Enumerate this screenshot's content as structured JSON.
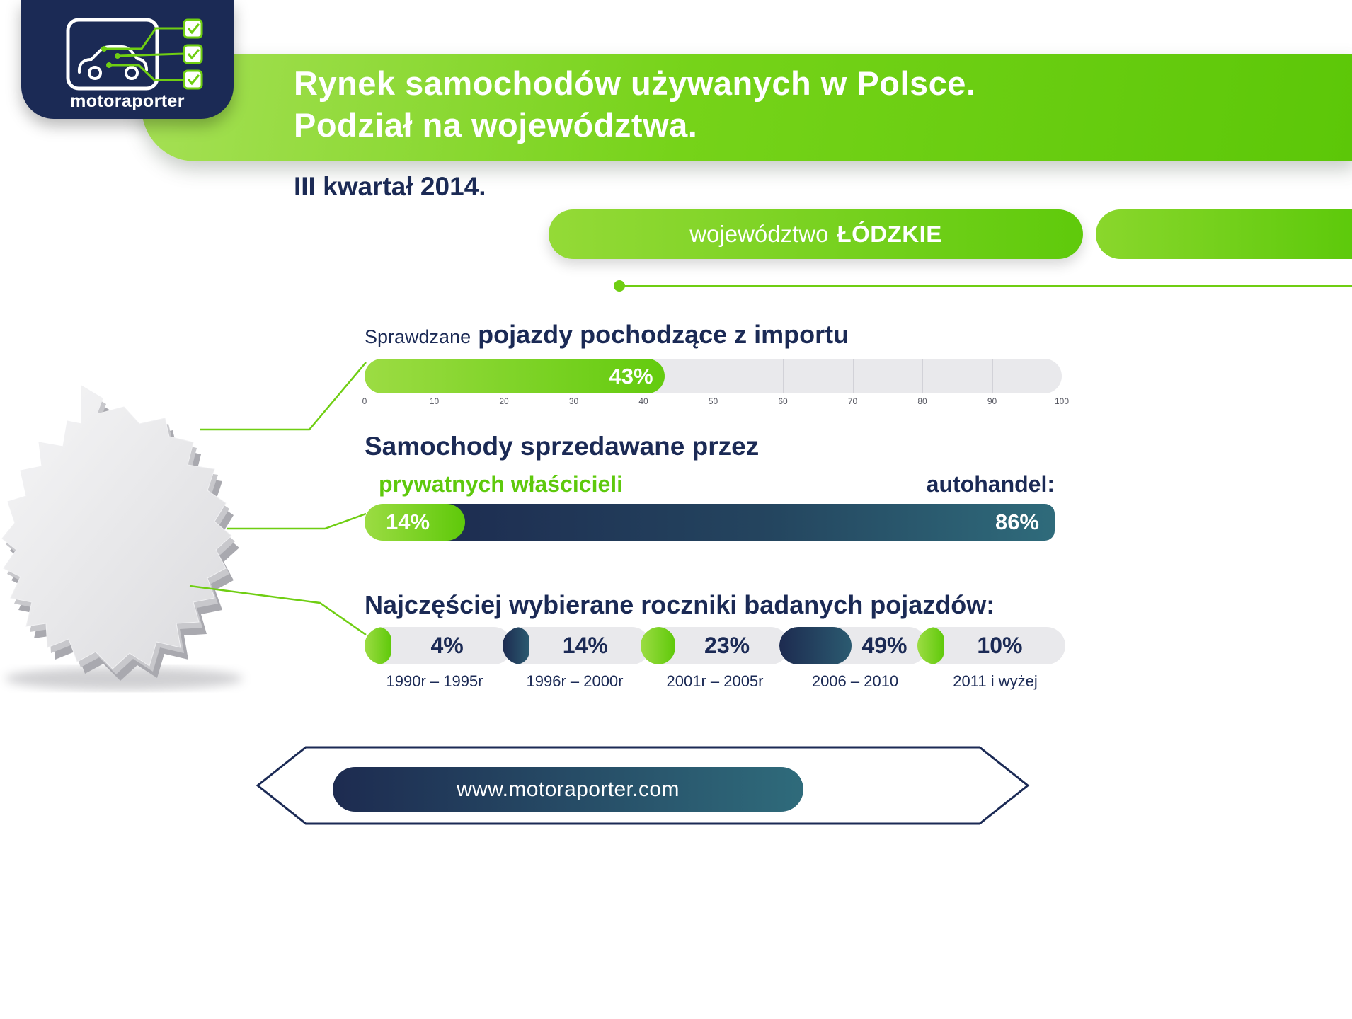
{
  "brand": {
    "name": "motoraporter",
    "website": "www.motoraporter.com"
  },
  "header": {
    "title_line1": "Rynek samochodów używanych  w Polsce.",
    "title_line2": "Podział na województwa.",
    "quarter": "III kwartał 2014.",
    "region_prefix": "województwo",
    "region_name": "ŁÓDZKIE"
  },
  "sections": {
    "import": {
      "title_prefix": "Sprawdzane",
      "title": "pojazdy pochodzące z importu",
      "value": 43,
      "value_label": "43%",
      "scale": [
        "0",
        "10",
        "20",
        "30",
        "40",
        "50",
        "60",
        "70",
        "80",
        "90",
        "100"
      ]
    },
    "sellers": {
      "title": "Samochody sprzedawane przez",
      "left_label": "prywatnych właścicieli",
      "right_label": "autohandel:",
      "left_value": 14,
      "left_value_label": "14%",
      "right_value": 86,
      "right_value_label": "86%"
    },
    "years": {
      "title": "Najczęściej wybierane roczniki badanych pojazdów:",
      "items": [
        {
          "value": 4,
          "value_label": "4%",
          "range": "1990r – 1995r",
          "accent": "green"
        },
        {
          "value": 14,
          "value_label": "14%",
          "range": "1996r – 2000r",
          "accent": "navy"
        },
        {
          "value": 23,
          "value_label": "23%",
          "range": "2001r – 2005r",
          "accent": "green"
        },
        {
          "value": 49,
          "value_label": "49%",
          "range": "2006 – 2010",
          "accent": "navy"
        },
        {
          "value": 10,
          "value_label": "10%",
          "range": "2011 i wyżej",
          "accent": "green"
        }
      ]
    }
  },
  "chart_data": [
    {
      "type": "bar",
      "orientation": "horizontal",
      "title": "Sprawdzane pojazdy pochodzące z importu",
      "categories": [
        "pojazdy pochodzące z importu"
      ],
      "values": [
        43
      ],
      "unit": "%",
      "xlim": [
        0,
        100
      ],
      "xticks": [
        0,
        10,
        20,
        30,
        40,
        50,
        60,
        70,
        80,
        90,
        100
      ]
    },
    {
      "type": "bar",
      "orientation": "horizontal-stacked",
      "title": "Samochody sprzedawane przez",
      "categories": [
        "prywatnych właścicieli",
        "autohandel"
      ],
      "values": [
        14,
        86
      ],
      "unit": "%",
      "xlim": [
        0,
        100
      ]
    },
    {
      "type": "bar",
      "title": "Najczęściej wybierane roczniki badanych pojazdów",
      "categories": [
        "1990r – 1995r",
        "1996r – 2000r",
        "2001r – 2005r",
        "2006 – 2010",
        "2011 i wyżej"
      ],
      "values": [
        4,
        14,
        23,
        49,
        10
      ],
      "unit": "%"
    }
  ],
  "colors": {
    "green": "#6fce12",
    "green_light": "#9cdc43",
    "navy": "#1b2a55",
    "teal": "#2f6b7b",
    "bar_background": "#e9e9ec"
  }
}
